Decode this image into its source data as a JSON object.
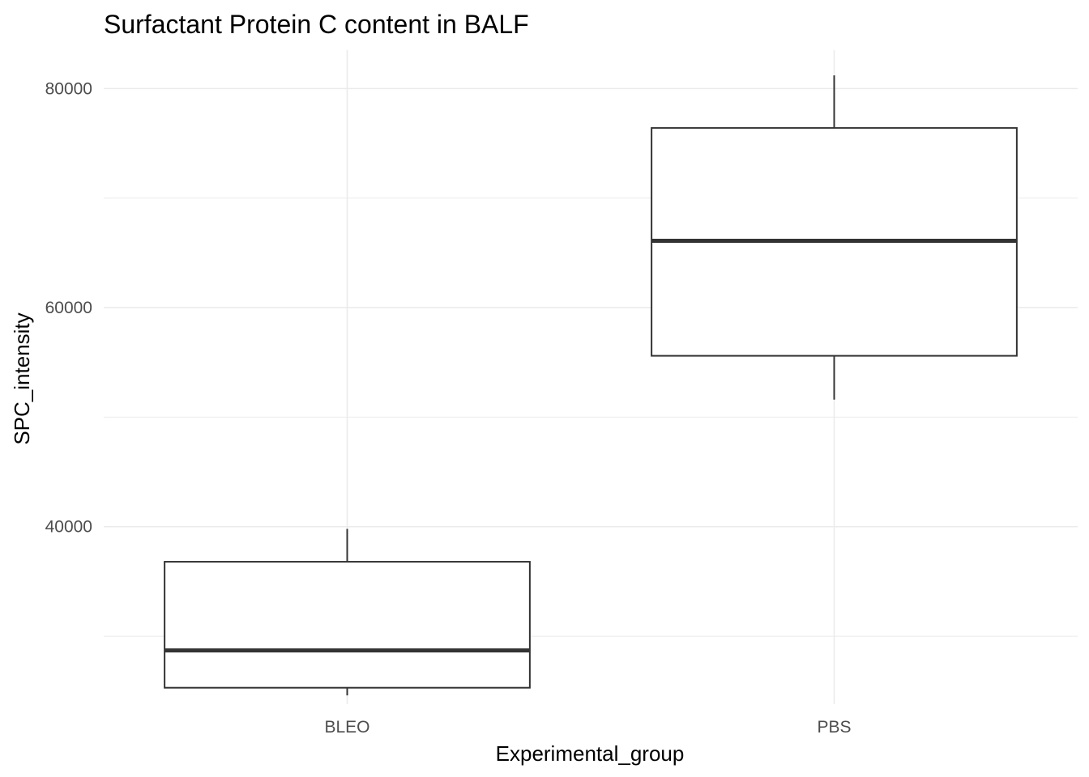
{
  "chart_data": {
    "type": "boxplot",
    "title": "Surfactant Protein C content in BALF",
    "xlabel": "Experimental_group",
    "ylabel": "SPC_intensity",
    "categories": [
      "BLEO",
      "PBS"
    ],
    "boxes": [
      {
        "category": "BLEO",
        "whisker_low": 24600,
        "q1": 25300,
        "median": 28700,
        "q3": 36800,
        "whisker_high": 39800
      },
      {
        "category": "PBS",
        "whisker_low": 51600,
        "q1": 55600,
        "median": 66100,
        "q3": 76400,
        "whisker_high": 81200
      }
    ],
    "ylim": [
      23800,
      83500
    ],
    "yticks": [
      40000,
      60000,
      80000
    ],
    "yticks_minor": [
      30000,
      50000,
      70000
    ],
    "ytick_labels": [
      "40000",
      "60000",
      "80000"
    ],
    "grid": true,
    "legend": "none",
    "colors": {
      "box_fill": "#ffffff",
      "box_line": "#333333",
      "grid": "#ebebeb",
      "tick_text": "#4d4d4d"
    }
  }
}
